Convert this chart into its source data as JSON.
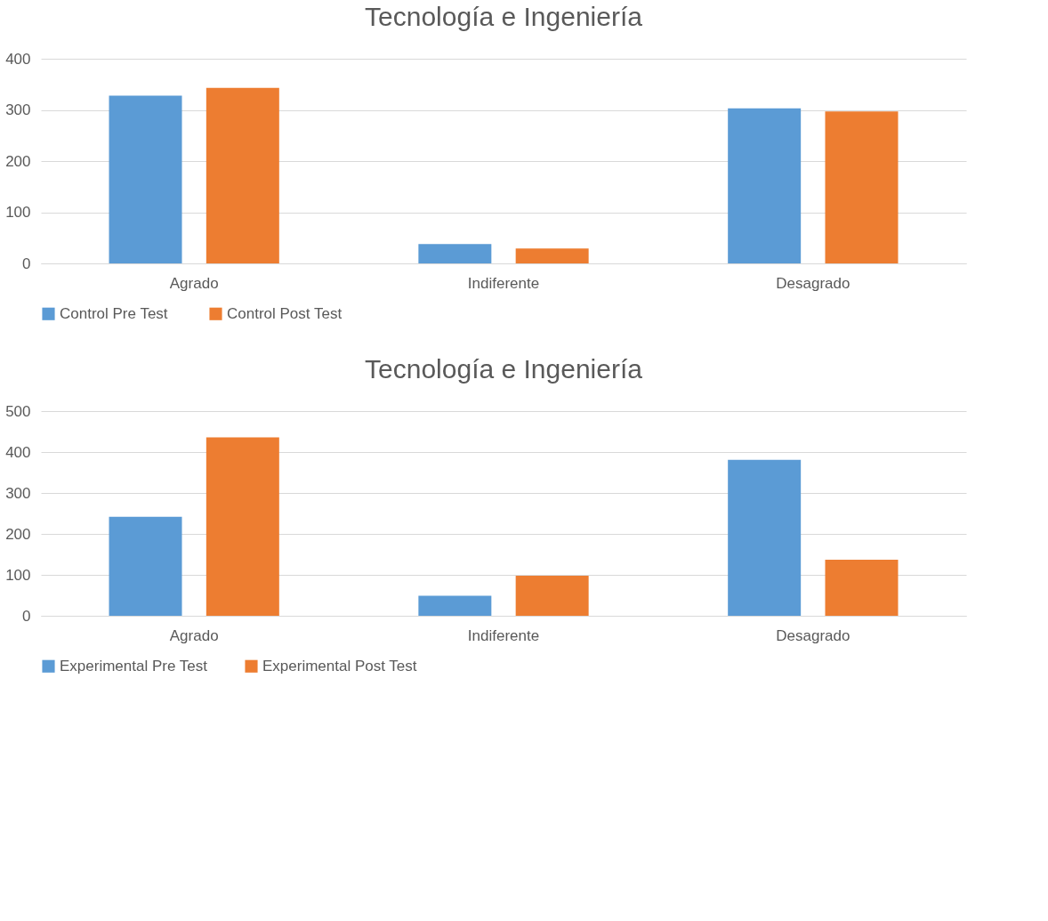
{
  "chart_data": [
    {
      "type": "bar",
      "title": "Tecnología e Ingeniería",
      "categories": [
        "Agrado",
        "Indiferente",
        "Desagrado"
      ],
      "series": [
        {
          "name": "Control  Pre Test",
          "color": "#5b9bd5",
          "values": [
            328,
            38,
            303
          ]
        },
        {
          "name": "Control  Post Test",
          "color": "#ed7d31",
          "values": [
            343,
            29,
            297
          ]
        }
      ],
      "ylim": [
        0,
        400
      ],
      "yticks": [
        0,
        100,
        200,
        300,
        400
      ],
      "grid": "y",
      "legend": "bottom"
    },
    {
      "type": "bar",
      "title": "Tecnología e Ingeniería",
      "categories": [
        "Agrado",
        "Indiferente",
        "Desagrado"
      ],
      "series": [
        {
          "name": "Experimental Pre Test",
          "color": "#5b9bd5",
          "values": [
            242,
            49,
            381
          ]
        },
        {
          "name": "Experimental Post Test",
          "color": "#ed7d31",
          "values": [
            436,
            98,
            137
          ]
        }
      ],
      "ylim": [
        0,
        500
      ],
      "yticks": [
        0,
        100,
        200,
        300,
        400,
        500
      ],
      "grid": "y",
      "legend": "bottom"
    }
  ]
}
